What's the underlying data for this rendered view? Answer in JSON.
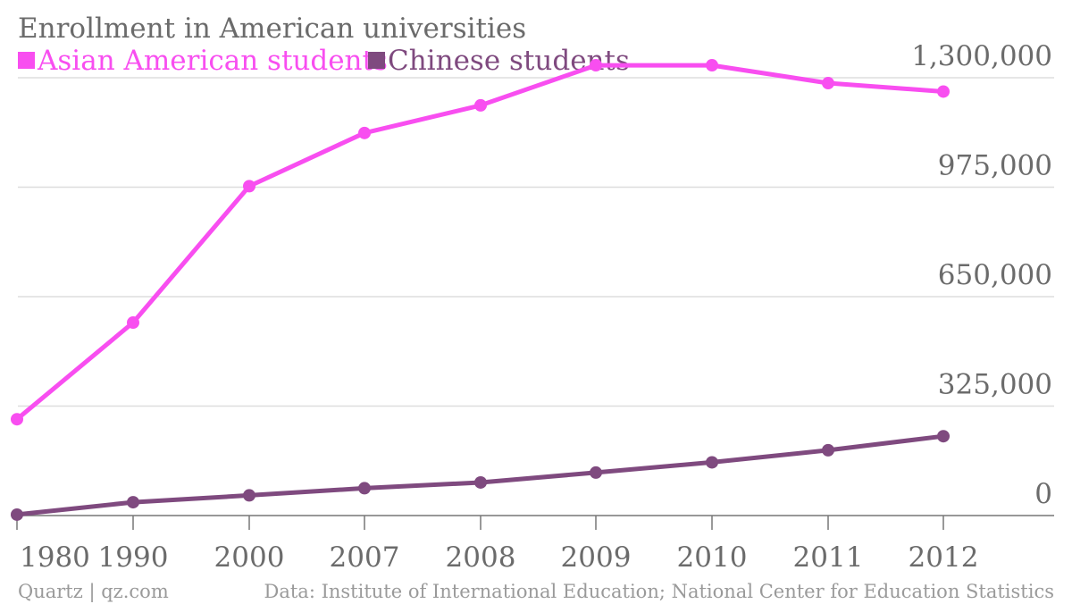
{
  "chart_data": {
    "type": "line",
    "title": "Enrollment in American universities",
    "categories": [
      "1980",
      "1990",
      "2000",
      "2007",
      "2008",
      "2009",
      "2010",
      "2011",
      "2012"
    ],
    "series": [
      {
        "name": "Asian American students",
        "color": "#f84ef0",
        "values": [
          286000,
          573000,
          978000,
          1136000,
          1218000,
          1337000,
          1337000,
          1284000,
          1259000
        ]
      },
      {
        "name": "Chinese students",
        "color": "#7f4a7f",
        "values": [
          2800,
          39600,
          59900,
          81100,
          98200,
          127600,
          158000,
          194000,
          235600
        ]
      }
    ],
    "y_ticks": [
      0,
      325000,
      650000,
      975000,
      1300000
    ],
    "y_tick_labels": [
      "0",
      "325,000",
      "650,000",
      "975,000",
      "1,300,000"
    ],
    "ylim": [
      0,
      1300000
    ],
    "grid": true,
    "legend_position": "top-left"
  },
  "footer": {
    "credit": "Quartz | qz.com",
    "source": "Data: Institute of International Education; National Center for Education Statistics"
  },
  "colors": {
    "text": "#6b6b6b",
    "grid": "#dedede",
    "axis": "#777777",
    "footer": "#9a9a9a"
  }
}
